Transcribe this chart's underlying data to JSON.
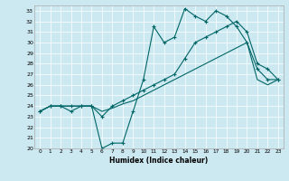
{
  "xlabel": "Humidex (Indice chaleur)",
  "bg_color": "#cce8f0",
  "grid_color": "#ffffff",
  "line_color": "#006666",
  "xlim": [
    -0.5,
    23.5
  ],
  "ylim": [
    20,
    33.5
  ],
  "xticks": [
    0,
    1,
    2,
    3,
    4,
    5,
    6,
    7,
    8,
    9,
    10,
    11,
    12,
    13,
    14,
    15,
    16,
    17,
    18,
    19,
    20,
    21,
    22,
    23
  ],
  "yticks": [
    20,
    21,
    22,
    23,
    24,
    25,
    26,
    27,
    28,
    29,
    30,
    31,
    32,
    33
  ],
  "s0_x": [
    0,
    1,
    2,
    3,
    4,
    5,
    6,
    7,
    8,
    9,
    10,
    11,
    12,
    13,
    14,
    15,
    16,
    17,
    18,
    19,
    20,
    21,
    22,
    23
  ],
  "s0_y": [
    23.5,
    24.0,
    24.0,
    23.5,
    24.0,
    24.0,
    20.0,
    20.5,
    20.5,
    23.5,
    26.5,
    31.5,
    30.0,
    30.5,
    33.2,
    32.5,
    32.0,
    33.0,
    32.5,
    31.5,
    30.0,
    27.5,
    26.5,
    26.5
  ],
  "s1_x": [
    0,
    1,
    2,
    3,
    4,
    5,
    6,
    7,
    8,
    9,
    10,
    11,
    12,
    13,
    14,
    15,
    16,
    17,
    18,
    19,
    20,
    21,
    22,
    23
  ],
  "s1_y": [
    23.5,
    24.0,
    24.0,
    24.0,
    24.0,
    24.0,
    23.5,
    23.8,
    24.2,
    24.5,
    25.0,
    25.5,
    26.0,
    26.5,
    27.0,
    27.5,
    28.0,
    28.5,
    29.0,
    29.5,
    30.0,
    26.5,
    26.0,
    26.5
  ],
  "s2_x": [
    0,
    1,
    2,
    3,
    4,
    5,
    6,
    7,
    8,
    9,
    10,
    11,
    12,
    13,
    14,
    15,
    16,
    17,
    18,
    19,
    20,
    21,
    22,
    23
  ],
  "s2_y": [
    23.5,
    24.0,
    24.0,
    24.0,
    24.0,
    24.0,
    23.0,
    24.0,
    24.5,
    25.0,
    25.5,
    26.0,
    26.5,
    27.0,
    28.5,
    30.0,
    30.5,
    31.0,
    31.5,
    32.0,
    31.0,
    28.0,
    27.5,
    26.5
  ]
}
